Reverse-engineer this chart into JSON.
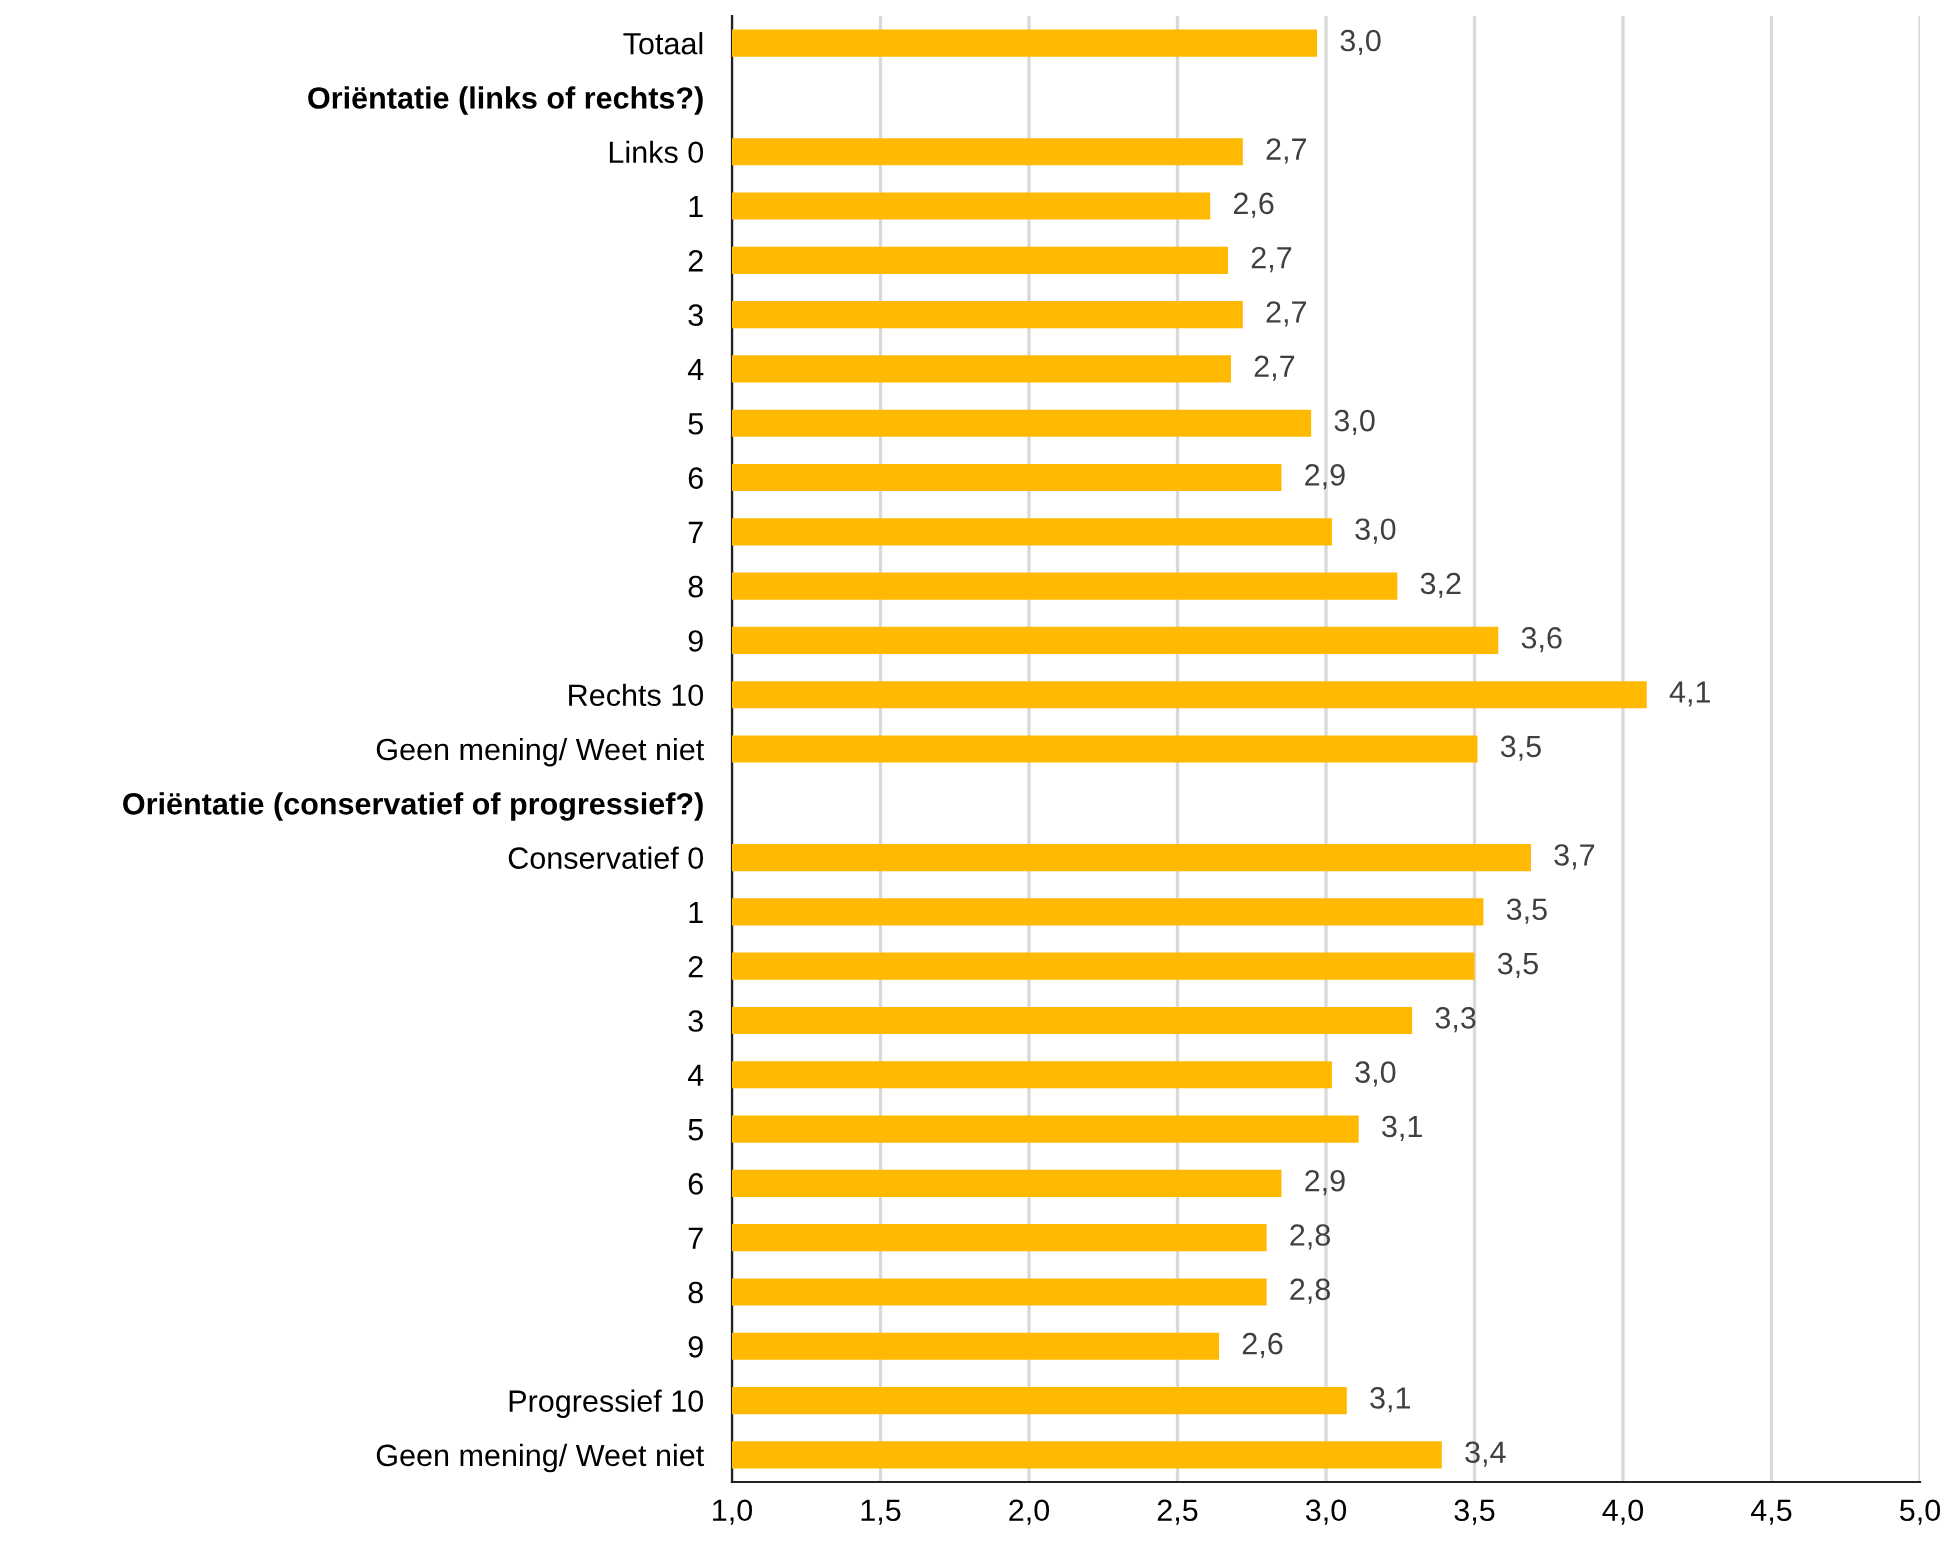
{
  "chart_data": {
    "type": "bar",
    "orientation": "horizontal",
    "categories": [
      "Totaal",
      "Oriëntatie (links of rechts?)",
      "Links 0",
      "1",
      "2",
      "3",
      "4",
      "5",
      "6",
      "7",
      "8",
      "9",
      "Rechts 10",
      "Geen mening/ Weet niet",
      "Oriëntatie (conservatief of progressief?)",
      "Conservatief 0",
      "1",
      "2",
      "3",
      "4",
      "5",
      "6",
      "7",
      "8",
      "9",
      "Progressief 10",
      "Geen mening/ Weet niet"
    ],
    "values": [
      2.97,
      null,
      2.72,
      2.61,
      2.67,
      2.72,
      2.68,
      2.95,
      2.85,
      3.02,
      3.24,
      3.58,
      4.08,
      3.51,
      null,
      3.69,
      3.53,
      3.5,
      3.29,
      3.02,
      3.11,
      2.85,
      2.8,
      2.8,
      2.64,
      3.07,
      3.39
    ],
    "value_labels": [
      "3,0",
      null,
      "2,7",
      "2,6",
      "2,7",
      "2,7",
      "2,7",
      "3,0",
      "2,9",
      "3,0",
      "3,2",
      "3,6",
      "4,1",
      "3,5",
      null,
      "3,7",
      "3,5",
      "3,5",
      "3,3",
      "3,0",
      "3,1",
      "2,9",
      "2,8",
      "2,8",
      "2,6",
      "3,1",
      "3,4"
    ],
    "color": "#ffb900",
    "xlim": [
      1.0,
      5.0
    ],
    "xticks": [
      {
        "value": 1.0,
        "label": "1,0"
      },
      {
        "value": 1.5,
        "label": "1,5"
      },
      {
        "value": 2.0,
        "label": "2,0"
      },
      {
        "value": 2.5,
        "label": "2,5"
      },
      {
        "value": 3.0,
        "label": "3,0"
      },
      {
        "value": 3.5,
        "label": "3,5"
      },
      {
        "value": 4.0,
        "label": "4,0"
      },
      {
        "value": 4.5,
        "label": "4,5"
      },
      {
        "value": 5.0,
        "label": "5,0"
      }
    ],
    "grid": "x",
    "legend": false
  }
}
